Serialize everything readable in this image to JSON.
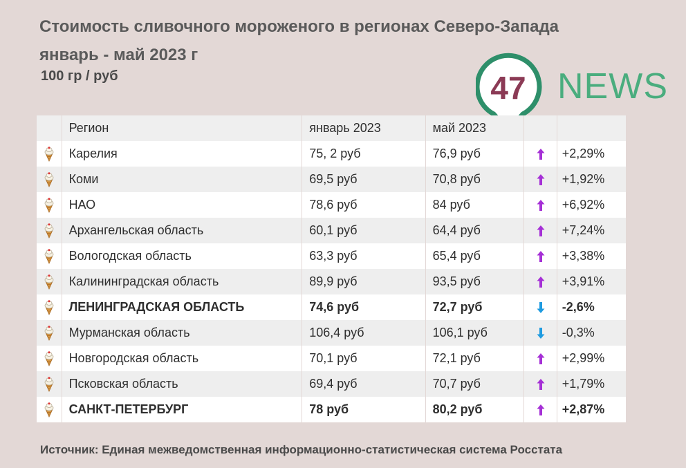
{
  "title_line1": "Стоимость сливочного мороженого в регионах Северо-Запада",
  "title_line2": "январь - май 2023 г",
  "subtitle": "100 гр / руб",
  "logo": {
    "number": "47",
    "text": "NEWS",
    "color": "#4aad7e",
    "pin_color": "#2e8f6a",
    "number_color": "#8b3a55"
  },
  "table": {
    "headers": [
      "",
      "Регион",
      "январь 2023",
      "май 2023",
      "",
      ""
    ],
    "rows": [
      {
        "icon": "ice-cream-icon",
        "region": "Карелия",
        "jan": "75, 2 руб",
        "may": "76,9 руб",
        "trend": "up",
        "change": "+2,29%",
        "bold": false
      },
      {
        "icon": "ice-cream-icon",
        "region": "Коми",
        "jan": "69,5 руб",
        "may": "70,8 руб",
        "trend": "up",
        "change": "+1,92%",
        "bold": false
      },
      {
        "icon": "ice-cream-icon",
        "region": "НАО",
        "jan": "78,6 руб",
        "may": "84 руб",
        "trend": "up",
        "change": "+6,92%",
        "bold": false
      },
      {
        "icon": "ice-cream-icon",
        "region": "Архангельская область",
        "jan": "60,1 руб",
        "may": "64,4 руб",
        "trend": "up",
        "change": "+7,24%",
        "bold": false
      },
      {
        "icon": "ice-cream-icon",
        "region": "Вологодская область",
        "jan": "63,3 руб",
        "may": "65,4 руб",
        "trend": "up",
        "change": "+3,38%",
        "bold": false
      },
      {
        "icon": "ice-cream-icon",
        "region": "Калининградская область",
        "jan": "89,9 руб",
        "may": "93,5 руб",
        "trend": "up",
        "change": "+3,91%",
        "bold": false
      },
      {
        "icon": "ice-cream-icon",
        "region": "ЛЕНИНГРАДСКАЯ ОБЛАСТЬ",
        "jan": "74,6 руб",
        "may": "72,7 руб",
        "trend": "down",
        "change": "-2,6%",
        "bold": true
      },
      {
        "icon": "ice-cream-icon",
        "region": "Мурманская область",
        "jan": "106,4 руб",
        "may": "106,1 руб",
        "trend": "down",
        "change": "-0,3%",
        "bold": false
      },
      {
        "icon": "ice-cream-icon",
        "region": "Новгородская область",
        "jan": "70,1 руб",
        "may": "72,1 руб",
        "trend": "up",
        "change": "+2,99%",
        "bold": false
      },
      {
        "icon": "ice-cream-icon",
        "region": "Псковская область",
        "jan": "69,4 руб",
        "may": "70,7 руб",
        "trend": "up",
        "change": "+1,79%",
        "bold": false
      },
      {
        "icon": "ice-cream-icon",
        "region": "САНКТ-ПЕТЕРБУРГ",
        "jan": "78 руб",
        "may": "80,2 руб",
        "trend": "up",
        "change": "+2,87%",
        "bold": true
      }
    ]
  },
  "colors": {
    "up_arrow": "#a52fd6",
    "down_arrow": "#1e9be0"
  },
  "source": "Источник: Единая межведомственная информационно-статистическая система Росстата"
}
